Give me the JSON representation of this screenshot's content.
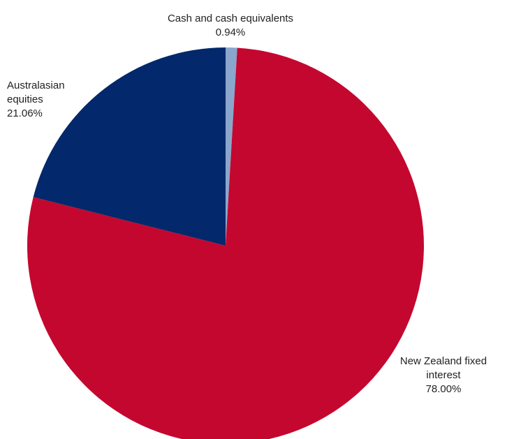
{
  "chart_data": {
    "type": "pie",
    "slices": [
      {
        "name": "Cash and cash equivalents",
        "value": 0.94,
        "value_label": "0.94%",
        "color": "#8aa6cc"
      },
      {
        "name": "New Zealand fixed interest",
        "value": 78.0,
        "value_label": "78.00%",
        "color": "#c4072f"
      },
      {
        "name": "Australasian equities",
        "value": 21.06,
        "value_label": "21.06%",
        "color": "#03286b"
      }
    ],
    "labels": {
      "cash": {
        "line1": "Cash and cash equivalents",
        "line2": "0.94%"
      },
      "nzfi": {
        "line1": "New Zealand fixed",
        "line2": "interest",
        "line3": "78.00%"
      },
      "aus": {
        "line1": "Australasian",
        "line2": "equities",
        "line3": "21.06%"
      }
    },
    "start_angle": "12 o'clock",
    "direction": "clockwise",
    "legend": "none"
  }
}
